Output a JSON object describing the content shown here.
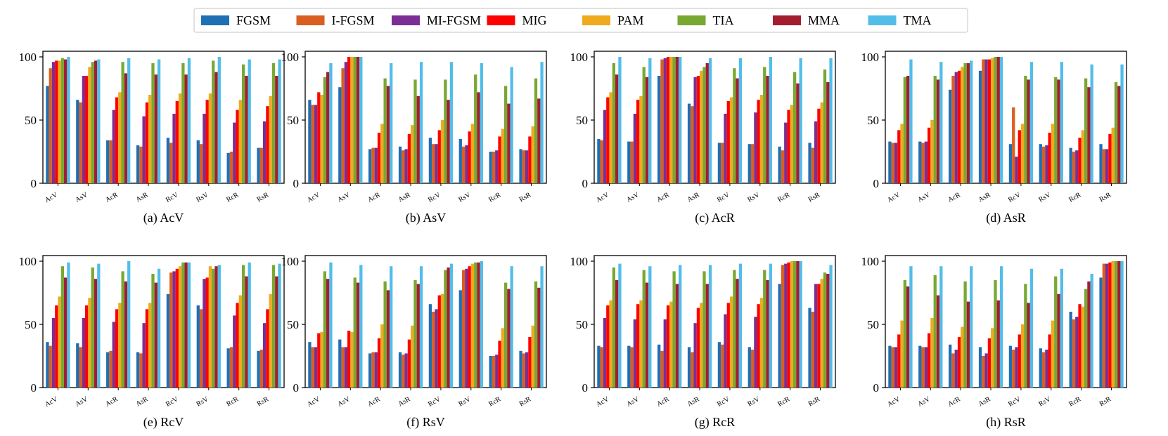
{
  "legend": {
    "entries": [
      {
        "name": "FGSM",
        "color": "#1f6fb4"
      },
      {
        "name": "I-FGSM",
        "color": "#d95f20"
      },
      {
        "name": "MI-FGSM",
        "color": "#7b2f94"
      },
      {
        "name": "MIG",
        "color": "#ff0000"
      },
      {
        "name": "PAM",
        "color": "#f0aa1e"
      },
      {
        "name": "TIA",
        "color": "#78a832"
      },
      {
        "name": "MMA",
        "color": "#a31d30"
      },
      {
        "name": "TMA",
        "color": "#52bde9"
      }
    ]
  },
  "chart_data": [
    {
      "type": "bar",
      "title": "(a) AcV",
      "categories": [
        "AcV",
        "AsV",
        "AcR",
        "AsR",
        "RcV",
        "RsV",
        "RcR",
        "RsR"
      ],
      "ylim": [
        0,
        100
      ],
      "yticks": [
        0,
        50,
        100
      ],
      "series": [
        {
          "name": "FGSM",
          "values": [
            77,
            66,
            34,
            30,
            36,
            34,
            24,
            28
          ]
        },
        {
          "name": "I-FGSM",
          "values": [
            91,
            64,
            34,
            29,
            32,
            31,
            25,
            28
          ]
        },
        {
          "name": "MI-FGSM",
          "values": [
            96,
            85,
            58,
            53,
            55,
            55,
            48,
            49
          ]
        },
        {
          "name": "MIG",
          "values": [
            97,
            85,
            68,
            64,
            65,
            66,
            58,
            61
          ]
        },
        {
          "name": "PAM",
          "values": [
            97,
            92,
            72,
            70,
            71,
            71,
            66,
            69
          ]
        },
        {
          "name": "TIA",
          "values": [
            99,
            96,
            96,
            95,
            95,
            97,
            94,
            95
          ]
        },
        {
          "name": "MMA",
          "values": [
            98,
            97,
            87,
            86,
            86,
            88,
            85,
            85
          ]
        },
        {
          "name": "TMA",
          "values": [
            100,
            98,
            99,
            98,
            99,
            100,
            98,
            98
          ]
        }
      ]
    },
    {
      "type": "bar",
      "title": "(b) AsV",
      "categories": [
        "AcV",
        "AsV",
        "AcR",
        "AsR",
        "RcV",
        "RsV",
        "RcR",
        "RsR"
      ],
      "ylim": [
        0,
        100
      ],
      "yticks": [
        0,
        50,
        100
      ],
      "series": [
        {
          "name": "FGSM",
          "values": [
            66,
            76,
            27,
            29,
            36,
            35,
            25,
            27
          ]
        },
        {
          "name": "I-FGSM",
          "values": [
            62,
            91,
            28,
            26,
            31,
            29,
            25,
            26
          ]
        },
        {
          "name": "MI-FGSM",
          "values": [
            62,
            96,
            28,
            27,
            31,
            30,
            26,
            26
          ]
        },
        {
          "name": "MIG",
          "values": [
            72,
            100,
            40,
            39,
            42,
            41,
            37,
            37
          ]
        },
        {
          "name": "PAM",
          "values": [
            70,
            100,
            47,
            46,
            50,
            47,
            43,
            45
          ]
        },
        {
          "name": "TIA",
          "values": [
            84,
            100,
            83,
            82,
            82,
            86,
            77,
            83
          ]
        },
        {
          "name": "MMA",
          "values": [
            88,
            100,
            77,
            69,
            66,
            72,
            63,
            67
          ]
        },
        {
          "name": "TMA",
          "values": [
            95,
            100,
            95,
            96,
            96,
            95,
            92,
            96
          ]
        }
      ]
    },
    {
      "type": "bar",
      "title": "(c) AcR",
      "categories": [
        "AcV",
        "AsV",
        "AcR",
        "AsR",
        "RcV",
        "RsV",
        "RcR",
        "RsR"
      ],
      "ylim": [
        0,
        100
      ],
      "yticks": [
        0,
        50,
        100
      ],
      "series": [
        {
          "name": "FGSM",
          "values": [
            35,
            33,
            85,
            63,
            32,
            31,
            29,
            32
          ]
        },
        {
          "name": "I-FGSM",
          "values": [
            34,
            33,
            98,
            61,
            32,
            31,
            26,
            28
          ]
        },
        {
          "name": "MI-FGSM",
          "values": [
            58,
            55,
            99,
            84,
            55,
            56,
            48,
            49
          ]
        },
        {
          "name": "MIG",
          "values": [
            68,
            66,
            100,
            85,
            65,
            66,
            58,
            59
          ]
        },
        {
          "name": "PAM",
          "values": [
            72,
            69,
            100,
            89,
            68,
            70,
            62,
            64
          ]
        },
        {
          "name": "TIA",
          "values": [
            95,
            92,
            100,
            92,
            91,
            92,
            88,
            90
          ]
        },
        {
          "name": "MMA",
          "values": [
            86,
            84,
            100,
            95,
            83,
            85,
            79,
            80
          ]
        },
        {
          "name": "TMA",
          "values": [
            100,
            99,
            100,
            99,
            99,
            100,
            99,
            99
          ]
        }
      ]
    },
    {
      "type": "bar",
      "title": "(d) AsR",
      "categories": [
        "AcV",
        "AsV",
        "AcR",
        "AsR",
        "RcV",
        "RsV",
        "RcR",
        "RsR"
      ],
      "ylim": [
        0,
        100
      ],
      "yticks": [
        0,
        50,
        100
      ],
      "series": [
        {
          "name": "FGSM",
          "values": [
            33,
            33,
            74,
            89,
            31,
            31,
            28,
            31
          ]
        },
        {
          "name": "I-FGSM",
          "values": [
            32,
            32,
            85,
            98,
            60,
            29,
            25,
            27
          ]
        },
        {
          "name": "MI-FGSM",
          "values": [
            32,
            33,
            88,
            98,
            21,
            30,
            26,
            27
          ]
        },
        {
          "name": "MIG",
          "values": [
            42,
            44,
            89,
            98,
            42,
            40,
            36,
            39
          ]
        },
        {
          "name": "PAM",
          "values": [
            47,
            50,
            92,
            99,
            47,
            47,
            42,
            44
          ]
        },
        {
          "name": "TIA",
          "values": [
            84,
            85,
            95,
            100,
            85,
            84,
            83,
            80
          ]
        },
        {
          "name": "MMA",
          "values": [
            85,
            82,
            95,
            100,
            82,
            82,
            76,
            77
          ]
        },
        {
          "name": "TMA",
          "values": [
            98,
            96,
            97,
            100,
            96,
            96,
            94,
            94
          ]
        }
      ]
    },
    {
      "type": "bar",
      "title": "(e) RcV",
      "categories": [
        "AcV",
        "AsV",
        "AcR",
        "AsR",
        "RcV",
        "RsV",
        "RcR",
        "RsR"
      ],
      "ylim": [
        0,
        100
      ],
      "yticks": [
        0,
        50,
        100
      ],
      "series": [
        {
          "name": "FGSM",
          "values": [
            36,
            35,
            28,
            28,
            74,
            65,
            31,
            29
          ]
        },
        {
          "name": "I-FGSM",
          "values": [
            33,
            32,
            29,
            27,
            91,
            62,
            32,
            30
          ]
        },
        {
          "name": "MI-FGSM",
          "values": [
            55,
            55,
            52,
            51,
            92,
            86,
            57,
            51
          ]
        },
        {
          "name": "MIG",
          "values": [
            65,
            65,
            62,
            62,
            94,
            87,
            67,
            62
          ]
        },
        {
          "name": "PAM",
          "values": [
            72,
            71,
            67,
            67,
            96,
            96,
            73,
            74
          ]
        },
        {
          "name": "TIA",
          "values": [
            96,
            95,
            92,
            90,
            99,
            94,
            97,
            97
          ]
        },
        {
          "name": "MMA",
          "values": [
            87,
            86,
            84,
            83,
            99,
            96,
            88,
            88
          ]
        },
        {
          "name": "TMA",
          "values": [
            99,
            98,
            100,
            94,
            99,
            97,
            99,
            98
          ]
        }
      ]
    },
    {
      "type": "bar",
      "title": "(f) RsV",
      "categories": [
        "AcV",
        "AsV",
        "AcR",
        "AsR",
        "RcV",
        "RsV",
        "RcR",
        "RsR"
      ],
      "ylim": [
        0,
        100
      ],
      "yticks": [
        0,
        50,
        100
      ],
      "series": [
        {
          "name": "FGSM",
          "values": [
            36,
            38,
            27,
            28,
            66,
            77,
            25,
            29
          ]
        },
        {
          "name": "I-FGSM",
          "values": [
            32,
            32,
            28,
            26,
            60,
            93,
            25,
            27
          ]
        },
        {
          "name": "MI-FGSM",
          "values": [
            32,
            32,
            28,
            27,
            62,
            94,
            26,
            28
          ]
        },
        {
          "name": "MIG",
          "values": [
            43,
            45,
            39,
            38,
            73,
            96,
            37,
            40
          ]
        },
        {
          "name": "PAM",
          "values": [
            44,
            44,
            50,
            49,
            74,
            98,
            47,
            49
          ]
        },
        {
          "name": "TIA",
          "values": [
            92,
            87,
            84,
            85,
            93,
            99,
            83,
            84
          ]
        },
        {
          "name": "MMA",
          "values": [
            86,
            83,
            77,
            82,
            95,
            99,
            78,
            79
          ]
        },
        {
          "name": "TMA",
          "values": [
            99,
            97,
            96,
            96,
            98,
            100,
            96,
            96
          ]
        }
      ]
    },
    {
      "type": "bar",
      "title": "(g) RcR",
      "categories": [
        "AcV",
        "AsV",
        "AcR",
        "AsR",
        "RcV",
        "RsV",
        "RcR",
        "RsR"
      ],
      "ylim": [
        0,
        100
      ],
      "yticks": [
        0,
        50,
        100
      ],
      "series": [
        {
          "name": "FGSM",
          "values": [
            33,
            33,
            34,
            32,
            36,
            32,
            82,
            63
          ]
        },
        {
          "name": "I-FGSM",
          "values": [
            32,
            32,
            29,
            28,
            34,
            30,
            97,
            60
          ]
        },
        {
          "name": "MI-FGSM",
          "values": [
            55,
            54,
            54,
            51,
            58,
            56,
            98,
            82
          ]
        },
        {
          "name": "MIG",
          "values": [
            65,
            66,
            65,
            63,
            67,
            66,
            99,
            82
          ]
        },
        {
          "name": "PAM",
          "values": [
            69,
            69,
            68,
            67,
            72,
            71,
            100,
            86
          ]
        },
        {
          "name": "TIA",
          "values": [
            95,
            93,
            92,
            92,
            93,
            93,
            100,
            91
          ]
        },
        {
          "name": "MMA",
          "values": [
            85,
            83,
            82,
            82,
            86,
            85,
            100,
            90
          ]
        },
        {
          "name": "TMA",
          "values": [
            98,
            96,
            97,
            97,
            98,
            98,
            100,
            97
          ]
        }
      ]
    },
    {
      "type": "bar",
      "title": "(h) RsR",
      "categories": [
        "AcV",
        "AsV",
        "AcR",
        "AsR",
        "RcV",
        "RsV",
        "RcR",
        "RsR"
      ],
      "ylim": [
        0,
        100
      ],
      "yticks": [
        0,
        50,
        100
      ],
      "series": [
        {
          "name": "FGSM",
          "values": [
            33,
            33,
            34,
            32,
            33,
            31,
            60,
            87
          ]
        },
        {
          "name": "I-FGSM",
          "values": [
            32,
            32,
            27,
            25,
            30,
            28,
            54,
            98
          ]
        },
        {
          "name": "MI-FGSM",
          "values": [
            32,
            32,
            30,
            27,
            32,
            30,
            56,
            98
          ]
        },
        {
          "name": "MIG",
          "values": [
            42,
            43,
            40,
            39,
            42,
            42,
            66,
            99
          ]
        },
        {
          "name": "PAM",
          "values": [
            53,
            55,
            48,
            47,
            50,
            53,
            64,
            100
          ]
        },
        {
          "name": "TIA",
          "values": [
            85,
            89,
            84,
            85,
            82,
            88,
            78,
            100
          ]
        },
        {
          "name": "MMA",
          "values": [
            80,
            73,
            68,
            69,
            67,
            74,
            84,
            100
          ]
        },
        {
          "name": "TMA",
          "values": [
            96,
            96,
            96,
            96,
            94,
            94,
            90,
            100
          ]
        }
      ]
    }
  ]
}
